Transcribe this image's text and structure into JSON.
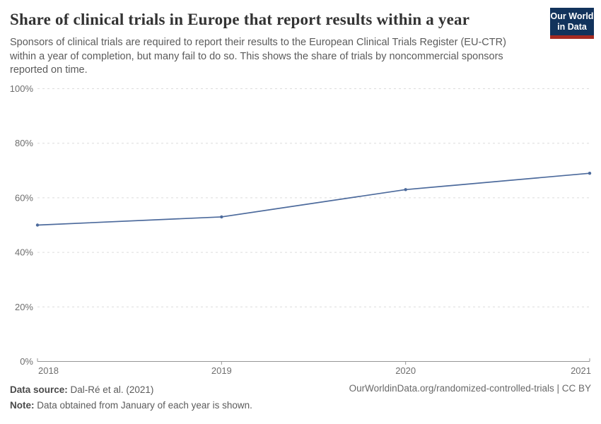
{
  "header": {
    "title": "Share of clinical trials in Europe that report results within a year",
    "subtitle": "Sponsors of clinical trials are required to report their results to the European Clinical Trials Register (EU-CTR) within a year of completion, but many fail to do so. This shows the share of trials by noncommercial sponsors reported on time.",
    "logo": {
      "line1": "Our World",
      "line2": "in Data",
      "bg_color": "#12335c",
      "bar_color": "#a62a21"
    }
  },
  "chart_data": {
    "type": "line",
    "title": "Share of clinical trials in Europe that report results within a year",
    "x": [
      "2018",
      "2019",
      "2020",
      "2021"
    ],
    "series": [
      {
        "name": "Share of trials by noncommercial sponsors reported on time",
        "values": [
          50,
          53,
          63,
          69
        ]
      }
    ],
    "xlabel": "",
    "ylabel": "",
    "ylim": [
      0,
      100
    ],
    "yticks": [
      0,
      20,
      40,
      60,
      80,
      100
    ],
    "ytick_suffix": "%",
    "grid": "dashed horizontal",
    "legend": "none",
    "colors": {
      "line": "#4c6a9c",
      "grid": "#dcdcdc",
      "axis": "#969696",
      "tick_label": "#6e6e6e"
    }
  },
  "footer": {
    "data_source_label": "Data source:",
    "data_source_value": "Dal-Ré et al. (2021)",
    "note_label": "Note:",
    "note_value": "Data obtained from January of each year is shown.",
    "url": "OurWorldinData.org/randomized-controlled-trials",
    "separator": " | ",
    "license": "CC BY"
  }
}
